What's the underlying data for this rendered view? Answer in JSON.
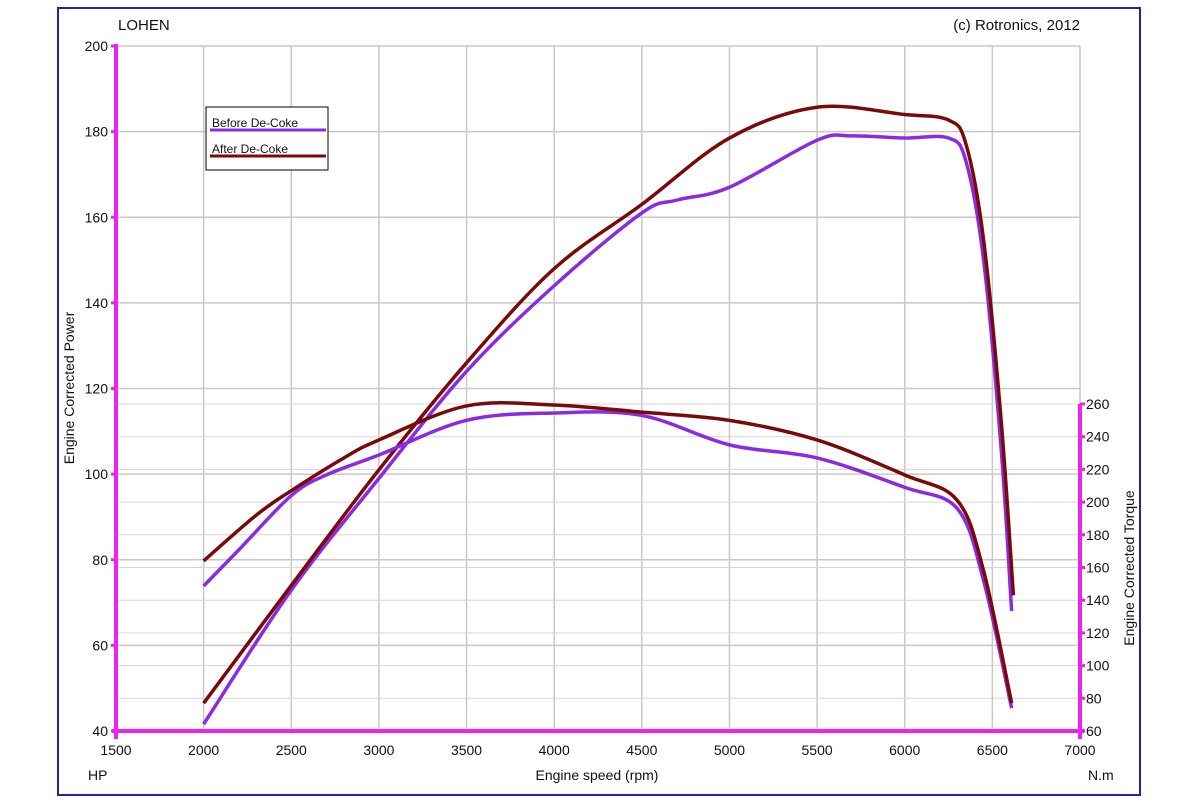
{
  "chart_data": {
    "type": "line",
    "title": "LOHEN",
    "copyright": "(c) Rotronics, 2012",
    "xlabel": "Engine speed (rpm)",
    "ylabel": "Engine Corrected Power",
    "y2label": "Engine Corrected Torque",
    "xunit": "HP",
    "y2unit": "N.m",
    "xlim": [
      1500,
      7000
    ],
    "ylim": [
      40,
      200
    ],
    "y2lim": [
      60,
      260
    ],
    "xticks": [
      1500,
      2000,
      2500,
      3000,
      3500,
      4000,
      4500,
      5000,
      5500,
      6000,
      6500,
      7000
    ],
    "yticks": [
      40,
      60,
      80,
      100,
      120,
      140,
      160,
      180,
      200
    ],
    "y2ticks": [
      60,
      80,
      100,
      120,
      140,
      160,
      180,
      200,
      220,
      240,
      260
    ],
    "grid": true,
    "legend_position": "top-left",
    "colors": {
      "before": "#8a2be2",
      "after": "#7a0a0a",
      "axis": "#ee22ee",
      "frame": "#2222aa"
    },
    "series": [
      {
        "name": "Before De-Coke",
        "quantity": "power",
        "axis": "left",
        "color_key": "before",
        "x": [
          2000,
          2500,
          3000,
          3500,
          4000,
          4500,
          4700,
          5000,
          5500,
          5700,
          6000,
          6250,
          6350,
          6450,
          6550,
          6610
        ],
        "y": [
          41.6,
          72.9,
          99,
          124,
          144,
          161,
          164,
          167,
          178,
          179,
          178.5,
          178.5,
          173,
          150,
          106,
          68
        ]
      },
      {
        "name": "After De-Coke",
        "quantity": "power",
        "axis": "left",
        "color_key": "after",
        "x": [
          2000,
          2500,
          3000,
          3500,
          4000,
          4500,
          5000,
          5500,
          6000,
          6250,
          6350,
          6450,
          6550,
          6620
        ],
        "y": [
          46.5,
          74,
          101,
          126,
          148,
          163,
          178.5,
          185.7,
          184,
          182.7,
          177,
          154.7,
          112.6,
          71.7
        ]
      },
      {
        "name": "Before De-Coke",
        "quantity": "torque",
        "axis": "right",
        "color_key": "before",
        "x": [
          2000,
          2200,
          2500,
          2700,
          3000,
          3500,
          4000,
          4500,
          5000,
          5500,
          6000,
          6300,
          6450,
          6610
        ],
        "y": [
          148.7,
          170.7,
          204,
          216.6,
          228.8,
          250,
          254.5,
          253,
          235,
          227,
          209,
          196,
          152,
          74
        ]
      },
      {
        "name": "After De-Coke",
        "quantity": "torque",
        "axis": "right",
        "color_key": "after",
        "x": [
          2000,
          2300,
          2500,
          2800,
          3000,
          3500,
          4000,
          4500,
          5000,
          5500,
          6000,
          6300,
          6450,
          6610
        ],
        "y": [
          164,
          192,
          207,
          227,
          238,
          258.8,
          259.4,
          255,
          250,
          238,
          216.6,
          201,
          158,
          77
        ]
      }
    ]
  }
}
